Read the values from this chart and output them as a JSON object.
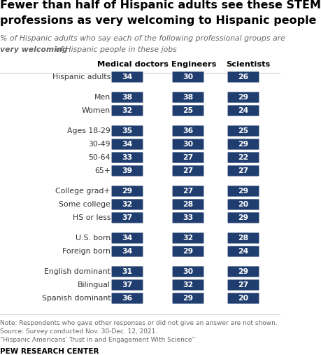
{
  "title_line1": "Fewer than half of Hispanic adults see these STEM",
  "title_line2": "professions as very welcoming to Hispanic people",
  "subtitle_line1": "% of Hispanic adults who say each of the following professional groups are",
  "subtitle_bold": "very welcoming",
  "subtitle_rest": " of Hispanic people in these jobs",
  "col_headers": [
    "Medical doctors",
    "Engineers",
    "Scientists"
  ],
  "rows": [
    {
      "label": "Hispanic adults",
      "values": [
        34,
        30,
        26
      ],
      "spacer": false
    },
    {
      "label": "",
      "values": [
        null,
        null,
        null
      ],
      "spacer": true
    },
    {
      "label": "Men",
      "values": [
        38,
        38,
        29
      ],
      "spacer": false
    },
    {
      "label": "Women",
      "values": [
        32,
        25,
        24
      ],
      "spacer": false
    },
    {
      "label": "",
      "values": [
        null,
        null,
        null
      ],
      "spacer": true
    },
    {
      "label": "Ages 18-29",
      "values": [
        35,
        36,
        25
      ],
      "spacer": false
    },
    {
      "label": "30-49",
      "values": [
        34,
        30,
        29
      ],
      "spacer": false
    },
    {
      "label": "50-64",
      "values": [
        33,
        27,
        22
      ],
      "spacer": false
    },
    {
      "label": "65+",
      "values": [
        39,
        27,
        27
      ],
      "spacer": false
    },
    {
      "label": "",
      "values": [
        null,
        null,
        null
      ],
      "spacer": true
    },
    {
      "label": "College grad+",
      "values": [
        29,
        27,
        29
      ],
      "spacer": false
    },
    {
      "label": "Some college",
      "values": [
        32,
        28,
        20
      ],
      "spacer": false
    },
    {
      "label": "HS or less",
      "values": [
        37,
        33,
        29
      ],
      "spacer": false
    },
    {
      "label": "",
      "values": [
        null,
        null,
        null
      ],
      "spacer": true
    },
    {
      "label": "U.S. born",
      "values": [
        34,
        32,
        28
      ],
      "spacer": false
    },
    {
      "label": "Foreign born",
      "values": [
        34,
        29,
        24
      ],
      "spacer": false
    },
    {
      "label": "",
      "values": [
        null,
        null,
        null
      ],
      "spacer": true
    },
    {
      "label": "English dominant",
      "values": [
        31,
        30,
        29
      ],
      "spacer": false
    },
    {
      "label": "Bilingual",
      "values": [
        37,
        32,
        27
      ],
      "spacer": false
    },
    {
      "label": "Spanish dominant",
      "values": [
        36,
        29,
        20
      ],
      "spacer": false
    }
  ],
  "bar_color": "#1f3d6e",
  "bar_text_color": "#ffffff",
  "note1": "Note: Respondents who gave other responses or did not give an answer are not shown.",
  "note2": "Source: Survey conducted Nov. 30-Dec. 12, 2021.",
  "note3": "“Hispanic Americans’ Trust in and Engagement With Science”",
  "source_bold": "PEW RESEARCH CENTER",
  "bg_color": "#ffffff",
  "label_color": "#333333",
  "header_color": "#000000"
}
